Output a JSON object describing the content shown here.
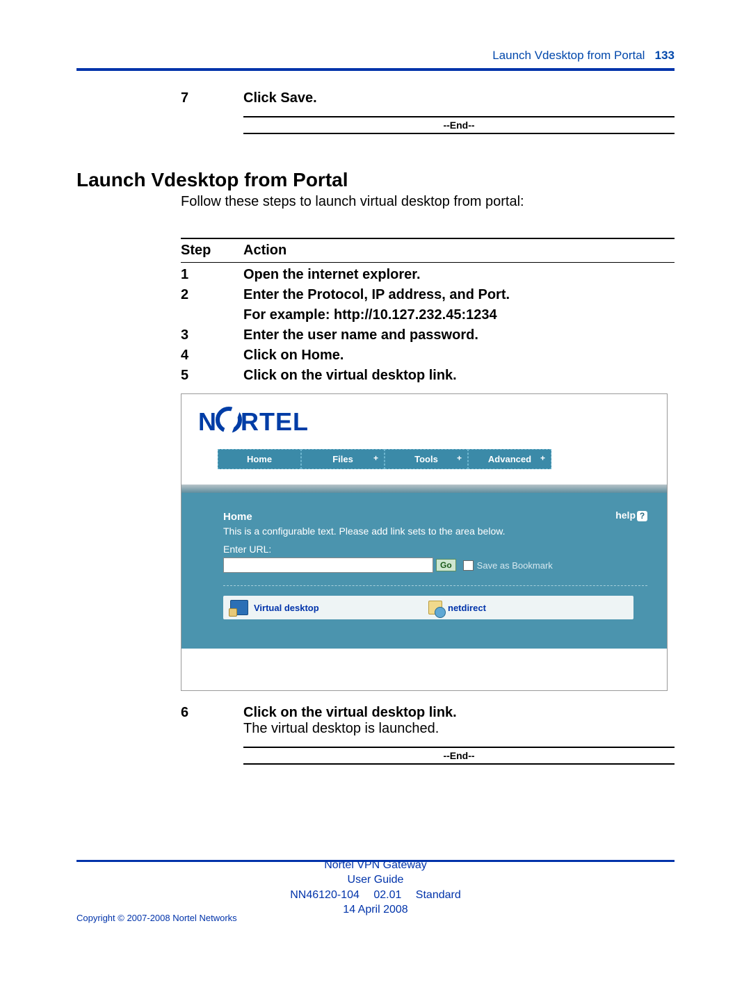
{
  "header": {
    "title": "Launch Vdesktop from Portal",
    "page_number": "133"
  },
  "top_step": {
    "num": "7",
    "action": "Click Save."
  },
  "end_marker": "--End--",
  "section": {
    "heading": "Launch Vdesktop from Portal",
    "intro": "Follow these steps to launch virtual desktop from portal:",
    "table_headers": {
      "step": "Step",
      "action": "Action"
    },
    "steps_above": [
      {
        "num": "1",
        "action": "Open the internet explorer."
      },
      {
        "num": "2",
        "action": "Enter the Protocol, IP address, and Port."
      },
      {
        "num": "",
        "action": "For example: http://10.127.232.45:1234"
      },
      {
        "num": "3",
        "action": "Enter the user name and password."
      },
      {
        "num": "4",
        "action": "Click on Home."
      },
      {
        "num": "5",
        "action": "Click on the virtual desktop link."
      }
    ]
  },
  "screenshot": {
    "brand_prefix": "N",
    "brand_suffix": "RTEL",
    "tabs": [
      {
        "label": "Home"
      },
      {
        "label": "Files",
        "plus": "+"
      },
      {
        "label": "Tools",
        "plus": "+"
      },
      {
        "label": "Advanced",
        "plus": "+"
      }
    ],
    "card": {
      "title": "Home",
      "help": "help",
      "desc": "This is a configurable text. Please add link sets to the area below.",
      "enter_label": "Enter URL:",
      "go": "Go",
      "save_bookmark": "Save as Bookmark"
    },
    "links": {
      "vdesktop": "Virtual desktop",
      "netdirect": "netdirect"
    }
  },
  "post_step": {
    "num": "6",
    "action": "Click on the virtual desktop link.",
    "result": "The virtual desktop is launched."
  },
  "footer": {
    "line1": "Nortel VPN Gateway",
    "line2": "User Guide",
    "line3": "NN46120-104  02.01  Standard",
    "line4": "14 April 2008",
    "copyright": "Copyright © 2007-2008 Nortel Networks"
  }
}
